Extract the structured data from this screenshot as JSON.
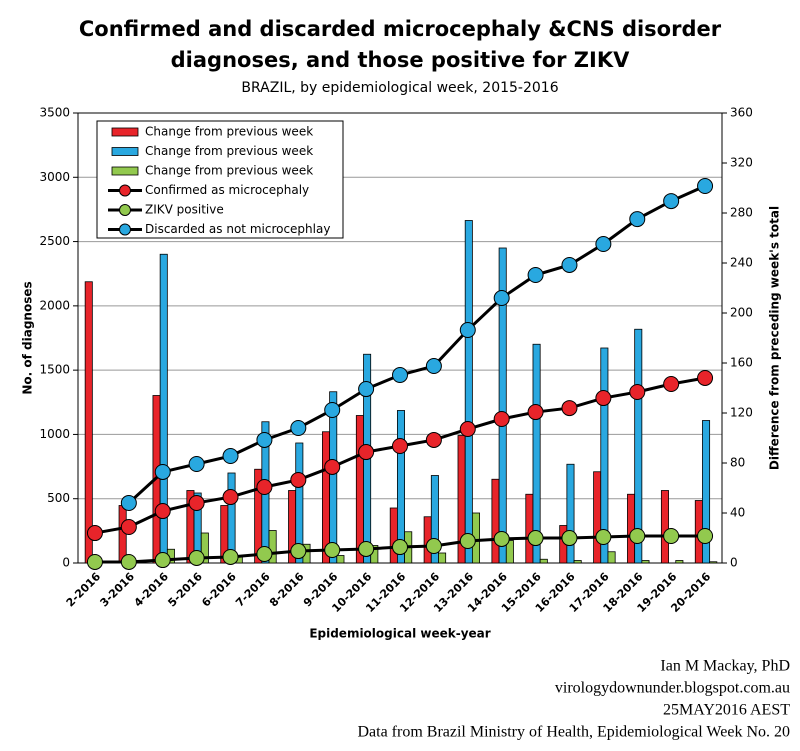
{
  "chart_data": {
    "type": "bar_line",
    "title": [
      "Confirmed and discarded microcephaly &CNS disorder",
      "diagnoses, and those positive for ZIKV"
    ],
    "subtitle": "BRAZIL, by epidemiological week, 2015-2016",
    "x_label": "Epidemiological week-year",
    "y_label": "No. of diagnoses",
    "y2_label": "Difference from preceding week's total",
    "annotations": [
      "Ian M Mackay, PhD",
      "virologydownunder.blogspot.com.au",
      "25MAY2016 AEST",
      "Data from Brazil Ministry of Health, Epidemiological Week No. 20"
    ],
    "categories": [
      "2-2016",
      "3-2016",
      "4-2016",
      "5-2016",
      "6-2016",
      "7-2016",
      "8-2016",
      "9-2016",
      "10-2016",
      "11-2016",
      "12-2016",
      "13-2016",
      "14-2016",
      "15-2016",
      "16-2016",
      "17-2016",
      "18-2016",
      "19-2016",
      "20-2016"
    ],
    "ylim": [
      0,
      3500
    ],
    "yticks": [
      0,
      500,
      1000,
      1500,
      2000,
      2500,
      3000,
      3500
    ],
    "y2lim": [
      0,
      360
    ],
    "y2ticks": [
      0,
      40,
      80,
      120,
      160,
      200,
      240,
      280,
      320,
      360
    ],
    "grid": true,
    "series": [
      {
        "name": "Change from previous week",
        "type": "bar",
        "axis": "y2",
        "color": "#e8242a",
        "values": [
          225,
          46,
          134,
          58,
          46,
          75,
          58,
          105,
          118,
          44,
          37,
          102,
          67,
          55,
          30,
          73,
          55,
          58,
          50
        ]
      },
      {
        "name": "Change from previous week",
        "type": "bar",
        "axis": "y2",
        "color": "#29a8e0",
        "values": [
          null,
          null,
          247,
          56,
          72,
          113,
          96,
          137,
          167,
          122,
          70,
          274,
          252,
          175,
          79,
          172,
          187,
          null,
          114
        ]
      },
      {
        "name": "Change from previous week",
        "type": "bar",
        "axis": "y2",
        "color": "#92c94e",
        "values": [
          null,
          null,
          11,
          24,
          5,
          26,
          15,
          6,
          14,
          25,
          8,
          40,
          18,
          3,
          2,
          9,
          2,
          2,
          1
        ]
      },
      {
        "name": "Confirmed as microcephaly",
        "type": "line",
        "color": "#e8242a",
        "values": [
          233,
          280,
          404,
          467,
          513,
          591,
          646,
          747,
          863,
          910,
          957,
          1042,
          1120,
          1174,
          1205,
          1283,
          1330,
          1392,
          1439
        ]
      },
      {
        "name": "ZIKV positive",
        "type": "line",
        "color": "#92c94e",
        "values": [
          8,
          8,
          23,
          39,
          47,
          70,
          93,
          101,
          109,
          124,
          132,
          171,
          187,
          194,
          194,
          202,
          210,
          210,
          210
        ]
      },
      {
        "name": "Discarded as not microcephlay",
        "type": "line",
        "color": "#29a8e0",
        "values": [
          null,
          467,
          708,
          770,
          832,
          957,
          1050,
          1190,
          1353,
          1462,
          1532,
          1812,
          2061,
          2240,
          2318,
          2481,
          2675,
          2815,
          2932
        ]
      }
    ]
  }
}
